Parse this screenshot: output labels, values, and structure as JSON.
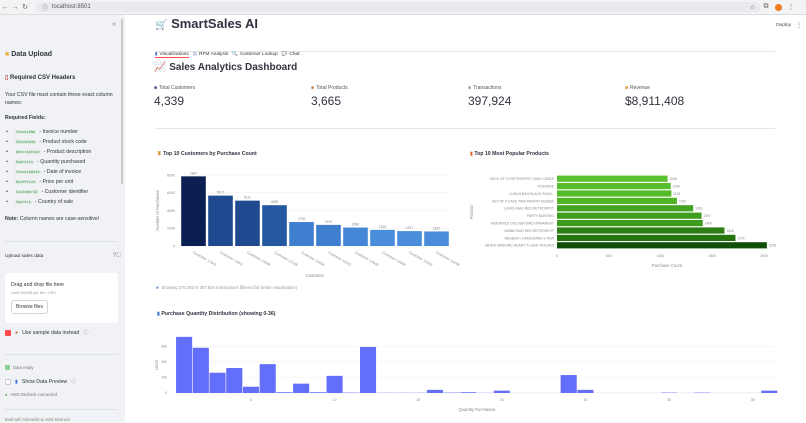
{
  "browser": {
    "url": "localhost:8501"
  },
  "sidebar": {
    "title": "Data Upload",
    "csv_heading": "Required CSV Headers",
    "intro": "Your CSV file must contain these exact column names:",
    "required_label": "Required Fields:",
    "fields": [
      {
        "code": "InvoiceNo",
        "desc": "- Invoice number"
      },
      {
        "code": "StockCode",
        "desc": "- Product stock code"
      },
      {
        "code": "Description",
        "desc": "- Product description"
      },
      {
        "code": "Quantity",
        "desc": "- Quantity purchased"
      },
      {
        "code": "InvoiceDate",
        "desc": "- Date of invoice"
      },
      {
        "code": "UnitPrice",
        "desc": "- Price per unit"
      },
      {
        "code": "CustomerID",
        "desc": "- Customer identifier"
      },
      {
        "code": "Country",
        "desc": "- Country of sale"
      }
    ],
    "note_bold": "Note:",
    "note": " Column names are case-sensitive!",
    "upload_label": "Upload sales data",
    "drop_text": "Drag and drop file here",
    "limit_text": "Limit 200MB per file • CSV",
    "browse": "Browse files",
    "sample_label": "Use sample data instead",
    "sample_checked": true,
    "data_ready": "Data ready",
    "preview_label": "Show Data Preview",
    "preview_checked": false,
    "bedrock": "AWS Bedrock connected",
    "footer": "Built with Streamlit & AWS Bedrock"
  },
  "header": {
    "app_title": "SmartSales AI",
    "deploy": "Deploy"
  },
  "tabs": [
    {
      "label": "Visualizations",
      "active": true
    },
    {
      "label": "RFM Analysis"
    },
    {
      "label": "Customer Lookup"
    },
    {
      "label": "Chat"
    }
  ],
  "dashboard": {
    "title": "Sales Analytics Dashboard",
    "metrics": [
      {
        "label": "Total Customers",
        "value": "4,339",
        "icon_color": "#5b3a8c"
      },
      {
        "label": "Total Products",
        "value": "3,665",
        "icon_color": "#c57b43"
      },
      {
        "label": "Transactions",
        "value": "397,924",
        "icon_color": "#999999"
      },
      {
        "label": "Revenue",
        "value": "$8,911,408",
        "icon_color": "#e38b1d"
      }
    ],
    "info": "Showing 376,293 of 397,924 transactions (filtered for better visualization)"
  },
  "chart_data": [
    {
      "type": "bar",
      "title": "Top 10 Customers by Purchase Count",
      "xlabel": "Customer",
      "ylabel": "Number of Purchases",
      "categories": [
        "Customer 17841",
        "Customer 14911",
        "Customer 14096",
        "Customer 12748",
        "Customer 14606",
        "Customer 15311",
        "Customer 14646",
        "Customer 13089",
        "Customer 13263",
        "Customer 14298"
      ],
      "values": [
        7847,
        5677,
        5111,
        4596,
        2700,
        2379,
        2080,
        1818,
        1677,
        1637
      ],
      "ylim": [
        0,
        8000
      ],
      "yticks": [
        0,
        2000,
        4000,
        6000,
        8000
      ],
      "grid": true
    },
    {
      "type": "bar",
      "orientation": "horizontal",
      "title": "Top 10 Most Popular Products",
      "xlabel": "Purchase Count",
      "ylabel": "Product",
      "categories": [
        "PACK OF 72 RETROSPOT CAKE CASES",
        "POSTAGE",
        "LUNCH BAG  BLACK SKULL.",
        "SET OF 3 CAKE TINS PANTRY DESIGN",
        "LUNCH BAG RED RETROSPOT",
        "PARTY BUNTING",
        "ASSORTED COLOUR BIRD ORNAMENT",
        "JUMBO BAG RED RETROSPOT",
        "REGENCY CAKESTAND 3 TIER",
        "WHITE HANGING HEART T-LIGHT HOLDER"
      ],
      "values": [
        1068,
        1099,
        1105,
        1159,
        1316,
        1397,
        1408,
        1618,
        1724,
        2028
      ],
      "xlim": [
        0,
        2050
      ],
      "xticks": [
        0,
        500,
        1000,
        1500,
        2000
      ]
    },
    {
      "type": "bar",
      "subtype": "histogram",
      "title": "Purchase Quantity Distribution (showing 0-36)",
      "xlabel": "Quantity Purchased",
      "ylabel": "count",
      "x": [
        1,
        2,
        3,
        4,
        5,
        6,
        7,
        8,
        9,
        10,
        11,
        12,
        13,
        14,
        15,
        16,
        17,
        18,
        19,
        20,
        21,
        22,
        23,
        24,
        25,
        26,
        27,
        28,
        29,
        30,
        31,
        32,
        33,
        34,
        35,
        36
      ],
      "values": [
        72000,
        58000,
        26000,
        32000,
        8000,
        37000,
        1000,
        12000,
        1000,
        22000,
        500,
        59000,
        300,
        300,
        300,
        4000,
        500,
        1000,
        200,
        3000,
        100,
        100,
        100,
        23000,
        4000,
        100,
        100,
        100,
        100,
        500,
        100,
        500,
        100,
        100,
        100,
        3000
      ],
      "xlim": [
        0.5,
        36.5
      ],
      "ylim": [
        0,
        75000
      ],
      "xticks": [
        5,
        10,
        15,
        20,
        25,
        30,
        35
      ],
      "yticks": [
        0,
        20000,
        40000,
        60000
      ],
      "ytick_labels": [
        "0",
        "20k",
        "40k",
        "60k"
      ],
      "color": "#636efa"
    }
  ]
}
